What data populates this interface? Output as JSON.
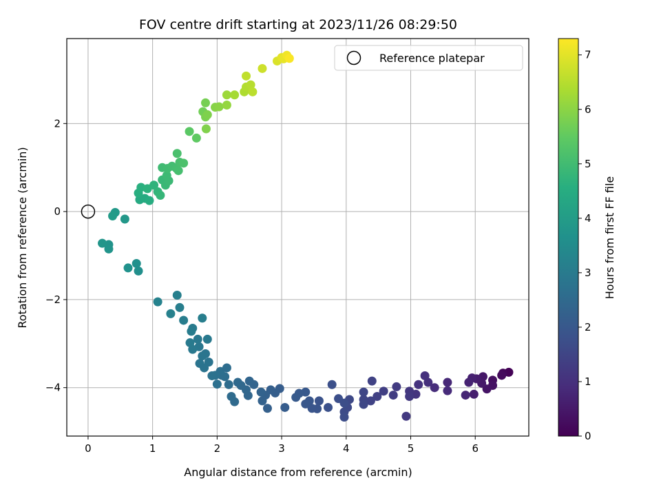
{
  "chart_data": {
    "type": "scatter",
    "title": "FOV centre drift starting at 2023/11/26 08:29:50",
    "xlabel": "Angular distance from reference (arcmin)",
    "ylabel": "Rotation from reference (arcmin)",
    "xlim": [
      -0.33,
      6.83
    ],
    "ylim": [
      -5.1,
      3.93
    ],
    "xticks": [
      0,
      1,
      2,
      3,
      4,
      5,
      6
    ],
    "yticks": [
      -4,
      -2,
      0,
      2
    ],
    "grid": true,
    "legend": {
      "position": "top-right",
      "entries": [
        "Reference platepar"
      ]
    },
    "reference_point": {
      "x": 0,
      "y": 0,
      "label": "Reference platepar"
    },
    "colorbar": {
      "label": "Hours from first FF file",
      "range": [
        0,
        7.3
      ],
      "ticks": [
        0,
        1,
        2,
        3,
        4,
        5,
        6,
        7
      ],
      "colormap": "viridis"
    },
    "series": [
      {
        "points": [
          [
            6.52,
            -3.65,
            0.05
          ],
          [
            6.43,
            -3.67,
            0.12
          ],
          [
            6.41,
            -3.72,
            0.2
          ],
          [
            6.27,
            -3.83,
            0.28
          ],
          [
            6.27,
            -3.95,
            0.35
          ],
          [
            6.18,
            -4.03,
            0.4
          ],
          [
            6.12,
            -3.75,
            0.45
          ],
          [
            6.1,
            -3.9,
            0.5
          ],
          [
            6.02,
            -3.8,
            0.55
          ],
          [
            5.98,
            -4.15,
            0.6
          ],
          [
            5.95,
            -3.78,
            0.65
          ],
          [
            5.9,
            -3.88,
            0.7
          ],
          [
            5.85,
            -4.17,
            0.75
          ],
          [
            5.57,
            -3.88,
            0.82
          ],
          [
            5.57,
            -4.07,
            0.88
          ],
          [
            5.37,
            -4.0,
            0.93
          ],
          [
            5.27,
            -3.88,
            0.98
          ],
          [
            5.22,
            -3.73,
            1.02
          ],
          [
            5.12,
            -3.93,
            1.06
          ],
          [
            5.08,
            -4.15,
            1.1
          ],
          [
            4.98,
            -4.08,
            1.15
          ],
          [
            4.98,
            -4.2,
            1.2
          ],
          [
            4.93,
            -4.65,
            1.23
          ],
          [
            4.78,
            -3.98,
            1.27
          ],
          [
            4.73,
            -4.17,
            1.3
          ],
          [
            4.58,
            -4.08,
            1.35
          ],
          [
            4.48,
            -4.2,
            1.4
          ],
          [
            4.4,
            -3.85,
            1.43
          ],
          [
            4.38,
            -4.3,
            1.46
          ],
          [
            4.27,
            -4.27,
            1.5
          ],
          [
            4.27,
            -4.1,
            1.53
          ],
          [
            4.27,
            -4.38,
            1.56
          ],
          [
            4.05,
            -4.27,
            1.6
          ],
          [
            4.02,
            -4.45,
            1.63
          ],
          [
            3.97,
            -4.55,
            1.66
          ],
          [
            3.97,
            -4.67,
            1.69
          ],
          [
            3.97,
            -4.35,
            1.72
          ],
          [
            3.88,
            -4.25,
            1.75
          ],
          [
            3.78,
            -3.93,
            1.78
          ],
          [
            3.72,
            -4.45,
            1.81
          ],
          [
            3.58,
            -4.3,
            1.84
          ],
          [
            3.55,
            -4.48,
            1.88
          ],
          [
            3.47,
            -4.47,
            1.91
          ],
          [
            3.43,
            -4.3,
            1.94
          ],
          [
            3.37,
            -4.37,
            1.97
          ],
          [
            3.37,
            -4.1,
            2.0
          ],
          [
            3.27,
            -4.13,
            2.03
          ],
          [
            3.22,
            -4.22,
            2.06
          ],
          [
            3.05,
            -4.45,
            2.1
          ],
          [
            2.97,
            -4.02,
            2.13
          ],
          [
            2.9,
            -4.12,
            2.16
          ],
          [
            2.83,
            -4.05,
            2.19
          ],
          [
            2.78,
            -4.47,
            2.22
          ],
          [
            2.75,
            -4.17,
            2.25
          ],
          [
            2.7,
            -4.3,
            2.28
          ],
          [
            2.68,
            -4.1,
            2.3
          ],
          [
            2.57,
            -3.93,
            2.33
          ],
          [
            2.5,
            -3.85,
            2.36
          ],
          [
            2.48,
            -4.18,
            2.39
          ],
          [
            2.45,
            -4.05,
            2.42
          ],
          [
            2.37,
            -3.95,
            2.45
          ],
          [
            2.32,
            -3.88,
            2.48
          ],
          [
            2.27,
            -4.32,
            2.51
          ],
          [
            2.22,
            -4.2,
            2.54
          ],
          [
            2.18,
            -3.93,
            2.57
          ],
          [
            2.12,
            -3.75,
            2.6
          ],
          [
            2.07,
            -3.72,
            2.63
          ],
          [
            2.05,
            -3.63,
            2.66
          ],
          [
            2.0,
            -3.92,
            2.69
          ],
          [
            1.97,
            -3.72,
            2.72
          ],
          [
            1.92,
            -3.73,
            2.75
          ],
          [
            1.87,
            -3.42,
            2.78
          ],
          [
            1.82,
            -3.23,
            2.81
          ],
          [
            1.77,
            -3.28,
            2.84
          ],
          [
            1.72,
            -3.07,
            2.87
          ],
          [
            1.7,
            -2.9,
            2.9
          ],
          [
            1.62,
            -3.13,
            2.93
          ],
          [
            1.58,
            -2.98,
            2.96
          ],
          [
            1.62,
            -2.65,
            3.0
          ],
          [
            1.6,
            -2.72,
            3.03
          ],
          [
            1.48,
            -2.47,
            3.07
          ],
          [
            1.42,
            -2.18,
            3.1
          ],
          [
            1.38,
            -1.9,
            3.13
          ],
          [
            1.28,
            -2.32,
            3.17
          ],
          [
            1.08,
            -2.05,
            3.2
          ],
          [
            1.77,
            -2.42,
            3.1
          ],
          [
            1.85,
            -2.9,
            2.95
          ],
          [
            1.73,
            -3.45,
            2.8
          ],
          [
            1.8,
            -3.55,
            2.78
          ],
          [
            2.15,
            -3.55,
            2.6
          ],
          [
            0.78,
            -1.35,
            3.6
          ],
          [
            0.75,
            -1.18,
            3.63
          ],
          [
            0.62,
            -1.28,
            3.67
          ],
          [
            0.32,
            -0.75,
            3.72
          ],
          [
            0.32,
            -0.85,
            3.75
          ],
          [
            0.22,
            -0.72,
            3.78
          ],
          [
            0.57,
            -0.17,
            3.85
          ],
          [
            0.42,
            -0.02,
            3.9
          ],
          [
            0.38,
            -0.1,
            3.95
          ],
          [
            0.8,
            0.27,
            4.4
          ],
          [
            0.88,
            0.3,
            4.45
          ],
          [
            0.95,
            0.25,
            4.5
          ],
          [
            0.78,
            0.42,
            4.55
          ],
          [
            0.82,
            0.55,
            4.6
          ],
          [
            0.92,
            0.52,
            4.65
          ],
          [
            1.02,
            0.6,
            4.7
          ],
          [
            1.08,
            0.45,
            4.75
          ],
          [
            1.12,
            0.37,
            4.8
          ],
          [
            1.15,
            0.72,
            4.85
          ],
          [
            1.2,
            0.6,
            4.88
          ],
          [
            1.25,
            0.7,
            4.91
          ],
          [
            1.22,
            0.82,
            4.94
          ],
          [
            1.15,
            1.0,
            4.97
          ],
          [
            1.23,
            0.98,
            5.0
          ],
          [
            1.3,
            1.03,
            5.03
          ],
          [
            1.37,
            0.98,
            5.06
          ],
          [
            1.4,
            0.93,
            5.09
          ],
          [
            1.42,
            1.12,
            5.12
          ],
          [
            1.38,
            1.32,
            5.15
          ],
          [
            1.48,
            1.1,
            5.18
          ],
          [
            1.57,
            1.82,
            5.4
          ],
          [
            1.68,
            1.67,
            5.48
          ],
          [
            1.78,
            2.27,
            5.7
          ],
          [
            1.82,
            2.47,
            5.75
          ],
          [
            1.82,
            2.15,
            5.8
          ],
          [
            1.85,
            2.2,
            5.85
          ],
          [
            1.83,
            1.88,
            5.88
          ],
          [
            1.97,
            2.37,
            5.95
          ],
          [
            2.03,
            2.38,
            6.0
          ],
          [
            2.15,
            2.42,
            6.1
          ],
          [
            2.15,
            2.65,
            6.2
          ],
          [
            2.27,
            2.65,
            6.3
          ],
          [
            2.42,
            2.72,
            6.4
          ],
          [
            2.45,
            2.83,
            6.45
          ],
          [
            2.52,
            2.88,
            6.5
          ],
          [
            2.55,
            2.72,
            6.55
          ],
          [
            2.45,
            3.08,
            6.6
          ],
          [
            2.7,
            3.25,
            6.75
          ],
          [
            2.93,
            3.42,
            6.9
          ],
          [
            3.0,
            3.5,
            7.0
          ],
          [
            3.03,
            3.47,
            7.05
          ],
          [
            3.08,
            3.55,
            7.15
          ],
          [
            3.12,
            3.48,
            7.25
          ]
        ]
      }
    ]
  }
}
